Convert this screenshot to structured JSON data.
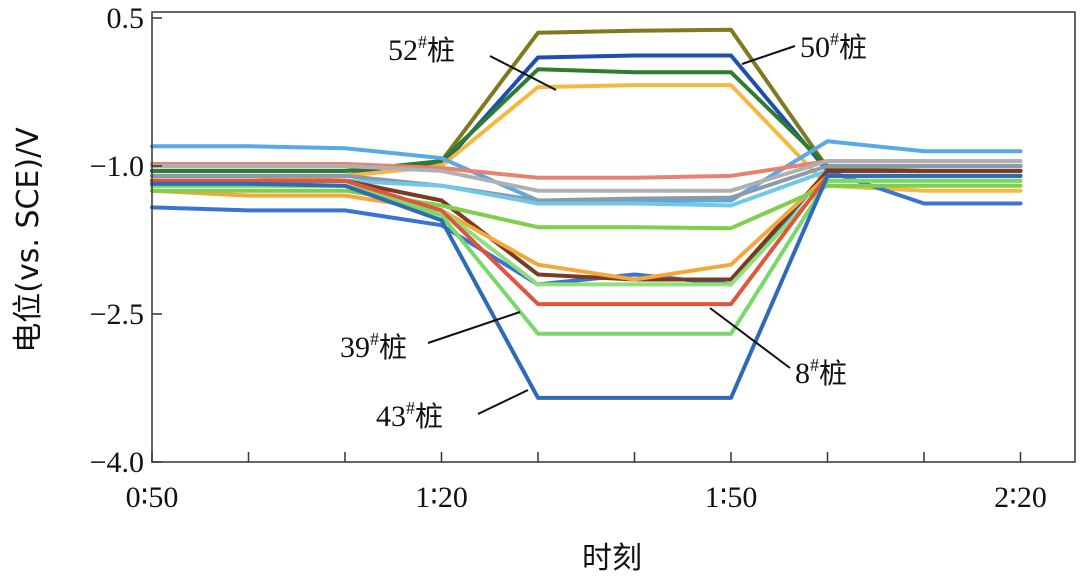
{
  "chart_data": {
    "type": "line",
    "xlabel": "时刻",
    "ylabel": "电位(vs. SCE)/V",
    "ylim": [
      -4.0,
      0.5
    ],
    "y_ticks": [
      0.5,
      -1.0,
      -2.5,
      -4.0
    ],
    "y_tick_labels": [
      "0.5",
      "−1.0",
      "−2.5",
      "−4.0"
    ],
    "x": [
      "0:50",
      "1:00",
      "1:10",
      "1:20",
      "1:30",
      "1:40",
      "1:50",
      "2:00",
      "2:10",
      "2:20"
    ],
    "x_tick_labels": [
      "0∶50",
      "1∶20",
      "1∶50",
      "2∶20"
    ],
    "grid": false,
    "series": [
      {
        "name": "50#桩",
        "color": "#7f7a1e",
        "values": [
          -1.1,
          -1.1,
          -1.1,
          -0.95,
          0.35,
          0.37,
          0.38,
          -1.02,
          -1.0,
          -1.0
        ]
      },
      {
        "name": "52#桩",
        "color": "#1f4fae",
        "values": [
          -1.05,
          -1.05,
          -1.05,
          -1.0,
          0.1,
          0.12,
          0.12,
          -1.05,
          -1.05,
          -1.05
        ]
      },
      {
        "color": "#2e7d2e",
        "values": [
          -1.05,
          -1.05,
          -1.05,
          -0.95,
          -0.02,
          -0.05,
          -0.05,
          -1.0,
          -1.0,
          -1.0
        ]
      },
      {
        "color": "#f5b942",
        "values": [
          -1.2,
          -1.15,
          -1.1,
          -1.0,
          -0.2,
          -0.18,
          -0.18,
          -1.2,
          -1.25,
          -1.25
        ]
      },
      {
        "color": "#59a9e6",
        "values": [
          -0.8,
          -0.8,
          -0.82,
          -0.92,
          -1.35,
          -1.35,
          -1.35,
          -0.75,
          -0.85,
          -0.85
        ]
      },
      {
        "color": "#e8826e",
        "values": [
          -0.98,
          -0.98,
          -0.98,
          -1.02,
          -1.12,
          -1.12,
          -1.1,
          -0.95,
          -0.95,
          -0.95
        ]
      },
      {
        "color": "#b0b0b0",
        "values": [
          -1.0,
          -1.0,
          -1.0,
          -1.05,
          -1.25,
          -1.25,
          -1.25,
          -0.95,
          -0.95,
          -0.95
        ]
      },
      {
        "color": "#8a9aa8",
        "values": [
          -1.1,
          -1.1,
          -1.1,
          -1.2,
          -1.35,
          -1.33,
          -1.32,
          -1.0,
          -1.0,
          -1.0
        ]
      },
      {
        "color": "#6fc8e8",
        "values": [
          -1.15,
          -1.15,
          -1.15,
          -1.2,
          -1.38,
          -1.38,
          -1.4,
          -1.05,
          -1.05,
          -1.05
        ]
      },
      {
        "color": "#3b73d4",
        "values": [
          -1.42,
          -1.45,
          -1.45,
          -1.6,
          -2.2,
          -2.1,
          -2.2,
          -1.05,
          -1.38,
          -1.38
        ]
      },
      {
        "name": "39#桩",
        "color": "#7a3b1e",
        "values": [
          -1.15,
          -1.15,
          -1.15,
          -1.35,
          -2.1,
          -2.15,
          -2.15,
          -1.05,
          -1.05,
          -1.05
        ]
      },
      {
        "color": "#f4a73a",
        "values": [
          -1.25,
          -1.3,
          -1.3,
          -1.45,
          -2.0,
          -2.15,
          -2.0,
          -1.1,
          -1.1,
          -1.1
        ]
      },
      {
        "color": "#7cd04a",
        "values": [
          -1.25,
          -1.25,
          -1.25,
          -1.4,
          -1.62,
          -1.62,
          -1.63,
          -1.2,
          -1.2,
          -1.2
        ]
      },
      {
        "color": "#8fe07a",
        "values": [
          -1.2,
          -1.2,
          -1.2,
          -1.45,
          -2.2,
          -2.2,
          -2.2,
          -1.15,
          -1.15,
          -1.15
        ]
      },
      {
        "name": "8#桩",
        "color": "#e0553c",
        "values": [
          -1.15,
          -1.15,
          -1.15,
          -1.45,
          -2.4,
          -2.4,
          -2.4,
          -1.1,
          -1.1,
          -1.1
        ]
      },
      {
        "color": "#79d86a",
        "values": [
          -1.2,
          -1.2,
          -1.2,
          -1.5,
          -2.7,
          -2.7,
          -2.7,
          -1.15,
          -1.15,
          -1.15
        ]
      },
      {
        "name": "43#桩",
        "color": "#2f6ab8",
        "values": [
          -1.18,
          -1.18,
          -1.2,
          -1.55,
          -3.35,
          -3.35,
          -3.35,
          -1.1,
          -1.1,
          -1.1
        ]
      }
    ],
    "annotations": [
      {
        "label_num": "52",
        "sup": "#",
        "cjk": "桩",
        "series": "52#桩"
      },
      {
        "label_num": "50",
        "sup": "#",
        "cjk": "桩",
        "series": "50#桩"
      },
      {
        "label_num": "39",
        "sup": "#",
        "cjk": "桩",
        "series": "39#桩"
      },
      {
        "label_num": "8",
        "sup": "#",
        "cjk": "桩",
        "series": "8#桩"
      },
      {
        "label_num": "43",
        "sup": "#",
        "cjk": "桩",
        "series": "43#桩"
      }
    ]
  }
}
